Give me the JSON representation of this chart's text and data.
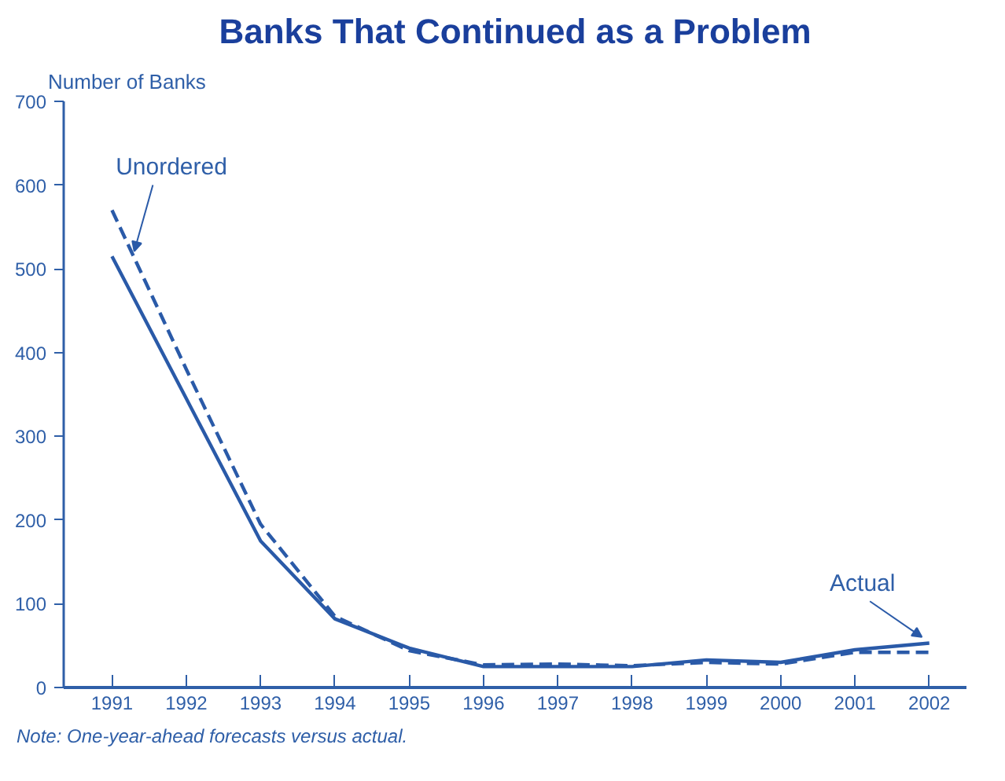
{
  "chart_data": {
    "type": "line",
    "title": "Banks That Continued as a Problem",
    "ylabel": "Number of Banks",
    "x": [
      1991,
      1992,
      1993,
      1994,
      1995,
      1996,
      1997,
      1998,
      1999,
      2000,
      2001,
      2002
    ],
    "series": [
      {
        "name": "Actual",
        "color": "#2a5aa8",
        "line_style": "solid",
        "values": [
          515,
          345,
          175,
          82,
          47,
          25,
          25,
          25,
          33,
          30,
          45,
          53
        ]
      },
      {
        "name": "Unordered",
        "color": "#2a5aa8",
        "line_style": "dashed",
        "values": [
          570,
          380,
          195,
          85,
          44,
          27,
          28,
          26,
          30,
          28,
          42,
          42
        ]
      }
    ],
    "xlim": [
      1990.35,
      2002.5
    ],
    "xticks": [
      1991,
      1992,
      1993,
      1994,
      1995,
      1996,
      1997,
      1998,
      1999,
      2000,
      2001,
      2002
    ],
    "ylim": [
      0,
      700
    ],
    "yticks": [
      0,
      100,
      200,
      300,
      400,
      500,
      600,
      700
    ],
    "grid": false,
    "marker": "none",
    "annotations": [
      "Note: One-year-ahead forecasts versus actual."
    ]
  }
}
